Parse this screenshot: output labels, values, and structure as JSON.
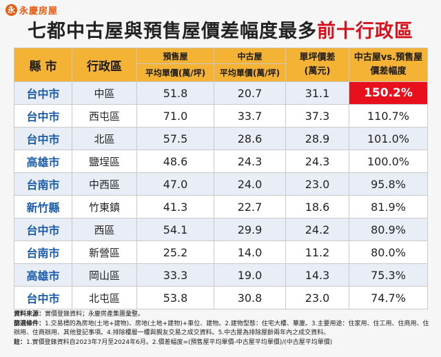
{
  "brand": {
    "mark": "永",
    "name": "永慶房屋"
  },
  "title": {
    "main": "七都中古屋與預售屋價差幅度最多",
    "highlight": "前十行政區"
  },
  "header": {
    "county": "縣 市",
    "district": "行政區",
    "presale": "預售屋",
    "presale_sub": "平均單價(萬/坪)",
    "used": "中古屋",
    "used_sub": "平均單價(萬/坪)",
    "diff_line1": "單坪價差",
    "diff_line2": "(萬元)",
    "ratio_line1": "中古屋vs.預售屋",
    "ratio_line2": "價差幅度"
  },
  "rows": [
    {
      "city": "台中市",
      "district": "中區",
      "presale": "51.8",
      "used": "20.7",
      "diff": "31.1",
      "ratio": "150.2%"
    },
    {
      "city": "台中市",
      "district": "西屯區",
      "presale": "71.0",
      "used": "33.7",
      "diff": "37.3",
      "ratio": "110.7%"
    },
    {
      "city": "台中市",
      "district": "北區",
      "presale": "57.5",
      "used": "28.6",
      "diff": "28.9",
      "ratio": "101.0%"
    },
    {
      "city": "高雄市",
      "district": "鹽埕區",
      "presale": "48.6",
      "used": "24.3",
      "diff": "24.3",
      "ratio": "100.0%"
    },
    {
      "city": "台南市",
      "district": "中西區",
      "presale": "47.0",
      "used": "24.0",
      "diff": "23.0",
      "ratio": "95.8%"
    },
    {
      "city": "新竹縣",
      "district": "竹東鎮",
      "presale": "41.3",
      "used": "22.7",
      "diff": "18.6",
      "ratio": "81.9%"
    },
    {
      "city": "台中市",
      "district": "西區",
      "presale": "54.1",
      "used": "29.9",
      "diff": "24.2",
      "ratio": "80.9%"
    },
    {
      "city": "台南市",
      "district": "新營區",
      "presale": "25.2",
      "used": "14.0",
      "diff": "11.2",
      "ratio": "80.0%"
    },
    {
      "city": "高雄市",
      "district": "岡山區",
      "presale": "33.3",
      "used": "19.0",
      "diff": "14.3",
      "ratio": "75.3%"
    },
    {
      "city": "台中市",
      "district": "北屯區",
      "presale": "53.8",
      "used": "30.8",
      "diff": "23.0",
      "ratio": "74.7%"
    }
  ],
  "notes": {
    "source_label": "資料來源：",
    "source_text": "實價登錄資料；永慶房產集團彙整。",
    "filter_label": "篩選條件：",
    "filter_text": "1.交易標的為房地(土地+建物)、房地(土地+建物)+車位、建物。2.建物型態：住宅大樓、華廈。3.主要用途：住家用、住工用、住商用、住辦用、住商辦用、其他登記事項。4.排除樓層一樓與親友交易之成交資料。5.中古屋為排除屋齡兩年內之成交資料。",
    "note_label": "註：",
    "note_text": "1.實價登錄資料自2023年7月至2024年6月。2.價差幅度=(預售屋平均單價-中古屋平均單價)/(中古屋平均單價)"
  }
}
